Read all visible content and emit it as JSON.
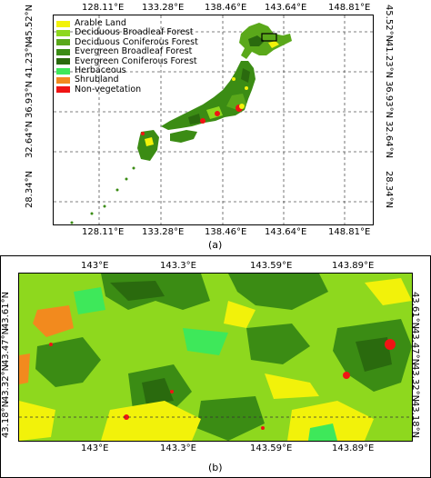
{
  "panel_a": {
    "label": "(a)",
    "x_ticks_top": [
      "128.11°E",
      "133.28°E",
      "138.46°E",
      "143.64°E",
      "148.81°E"
    ],
    "x_ticks_bottom": [
      "128.11°E",
      "133.28°E",
      "138.46°E",
      "143.64°E",
      "148.81°E"
    ],
    "y_ticks_left": [
      "45.52°N",
      "41.23°N",
      "36.93°N",
      "32.64°N",
      "28.34°N"
    ],
    "y_ticks_right": [
      "45.52°N",
      "41.23°N",
      "36.93°N",
      "32.64°N",
      "28.34°N"
    ],
    "legend": [
      {
        "label": "Arable Land",
        "color": "#f2f20a"
      },
      {
        "label": "Deciduous Broadleaf Forest",
        "color": "#8ed81e"
      },
      {
        "label": "Deciduous Coniferous Forest",
        "color": "#5aa81a"
      },
      {
        "label": "Evergreen Broadleaf Forest",
        "color": "#3b8c14"
      },
      {
        "label": "Evergreen Coniferous Forest",
        "color": "#2a6a0e"
      },
      {
        "label": "Herbaceous",
        "color": "#3ee85a"
      },
      {
        "label": "Shrubland",
        "color": "#f28a1e"
      },
      {
        "label": "Non-vegetation",
        "color": "#f01414"
      }
    ]
  },
  "panel_b": {
    "label": "(b)",
    "x_ticks_top": [
      "143°E",
      "143.3°E",
      "143.59°E",
      "143.89°E"
    ],
    "x_ticks_bottom": [
      "143°E",
      "143.3°E",
      "143.59°E",
      "143.89°E"
    ],
    "y_ticks_left": [
      "43.61°N",
      "43.47°N",
      "43.32°N",
      "43.18°N"
    ],
    "y_ticks_right": [
      "43.61°N",
      "43.47°N",
      "43.32°N",
      "43.18°N"
    ]
  }
}
